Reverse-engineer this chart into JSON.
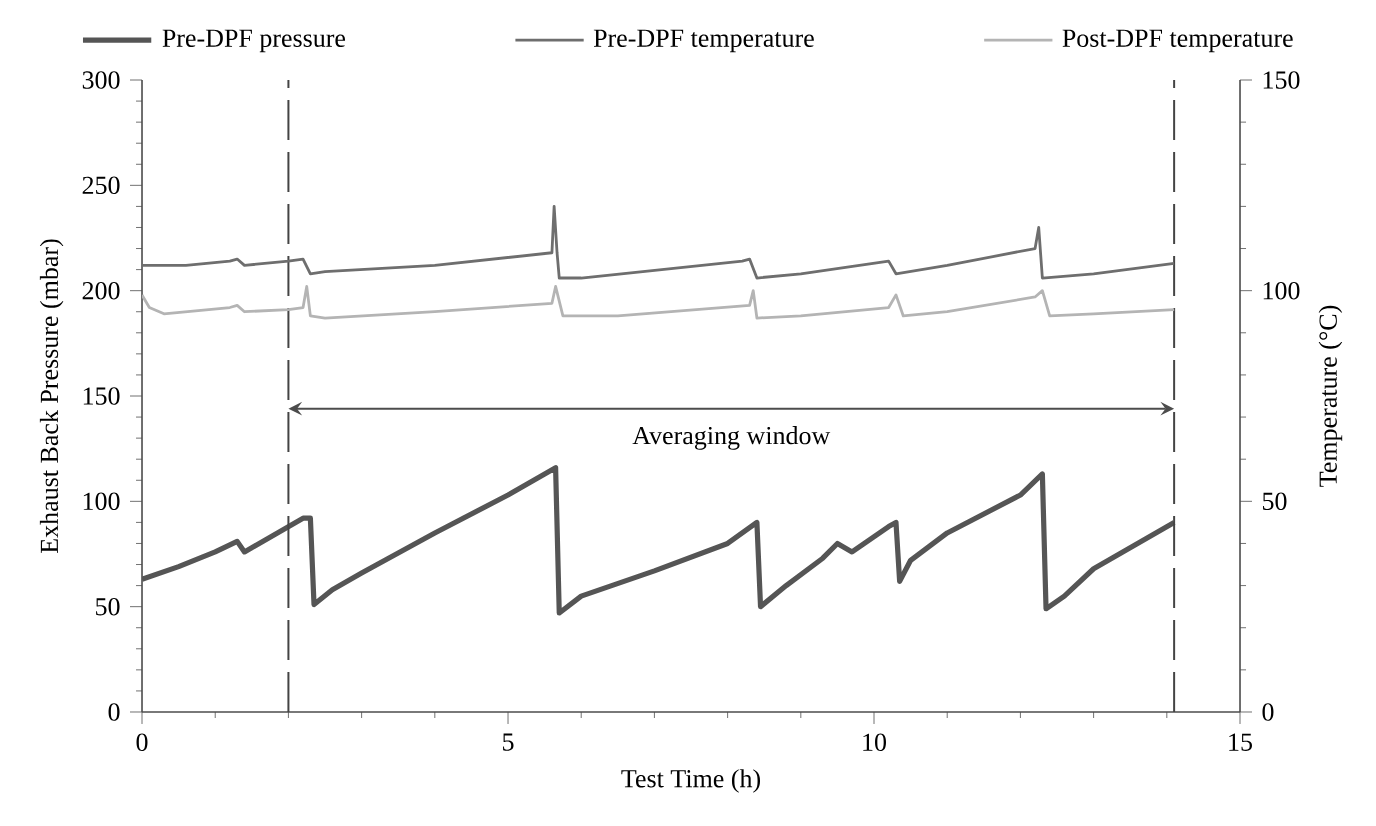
{
  "chart_data": {
    "type": "line",
    "xlabel": "Test Time (h)",
    "ylabel": "Exhaust Back Pressure (mbar)",
    "y2label": "Temperature (°C)",
    "xlim": [
      0,
      15
    ],
    "xticks": [
      0,
      5,
      10,
      15
    ],
    "ylim": [
      0,
      300
    ],
    "yticks": [
      0,
      50,
      100,
      150,
      200,
      250,
      300
    ],
    "y2lim": [
      0,
      150
    ],
    "y2ticks": [
      0,
      50,
      100,
      150
    ],
    "legend": "top",
    "grid": false,
    "marker": "none",
    "line_style": "solid",
    "series": [
      {
        "name": "Pre-DPF pressure",
        "color": "#555555",
        "x": [
          0,
          0.5,
          1.0,
          1.3,
          1.4,
          1.8,
          2.2,
          2.3,
          2.35,
          2.6,
          3.0,
          4.0,
          5.0,
          5.65,
          5.7,
          6.0,
          7.0,
          8.0,
          8.4,
          8.45,
          8.8,
          9.3,
          9.5,
          9.7,
          10.2,
          10.3,
          10.35,
          10.5,
          11.0,
          12.0,
          12.3,
          12.35,
          12.6,
          13.0,
          14.1
        ],
        "values": [
          63,
          69,
          76,
          81,
          76,
          84,
          92,
          92,
          51,
          58,
          66,
          85,
          103,
          116,
          47,
          55,
          67,
          80,
          90,
          50,
          60,
          73,
          80,
          76,
          88,
          90,
          62,
          72,
          85,
          103,
          113,
          49,
          55,
          68,
          90
        ]
      },
      {
        "name": "Pre-DPF temperature",
        "color": "#6e6e6e",
        "axis": "y2",
        "x": [
          0,
          0.6,
          1.2,
          1.3,
          1.4,
          2.0,
          2.2,
          2.3,
          2.5,
          4.0,
          5.6,
          5.63,
          5.67,
          5.7,
          6.0,
          8.2,
          8.3,
          8.4,
          9.0,
          10.2,
          10.3,
          11.0,
          12.2,
          12.25,
          12.3,
          13.0,
          14.1
        ],
        "values": [
          106,
          106,
          107,
          107.5,
          106,
          107,
          107.5,
          104,
          104.5,
          106,
          109,
          120,
          109,
          103,
          103,
          107,
          107.5,
          103,
          104,
          107,
          104,
          106,
          110,
          115,
          103,
          104,
          106.5
        ]
      },
      {
        "name": "Post-DPF temperature",
        "color": "#b4b4b4",
        "axis": "y2",
        "x": [
          0,
          0.1,
          0.3,
          1.2,
          1.3,
          1.4,
          2.0,
          2.2,
          2.25,
          2.3,
          2.5,
          4.0,
          5.6,
          5.65,
          5.75,
          6.5,
          8.3,
          8.35,
          8.4,
          9.0,
          10.2,
          10.3,
          10.4,
          11.0,
          12.2,
          12.3,
          12.4,
          13.0,
          14.1
        ],
        "values": [
          99,
          96,
          94.5,
          96,
          96.5,
          95,
          95.5,
          96,
          101,
          94,
          93.5,
          95,
          97,
          101,
          94,
          94,
          96.5,
          100,
          93.5,
          94,
          96,
          99,
          94,
          95,
          98.5,
          100,
          94,
          94.5,
          95.5
        ]
      }
    ],
    "ref_lines": [
      {
        "axis": "x",
        "value": 2,
        "color": "#444444",
        "line_style": "dashed"
      },
      {
        "axis": "x",
        "value": 14.1,
        "color": "#444444",
        "line_style": "dashed"
      }
    ],
    "annotations": [
      "Averaging window"
    ]
  }
}
